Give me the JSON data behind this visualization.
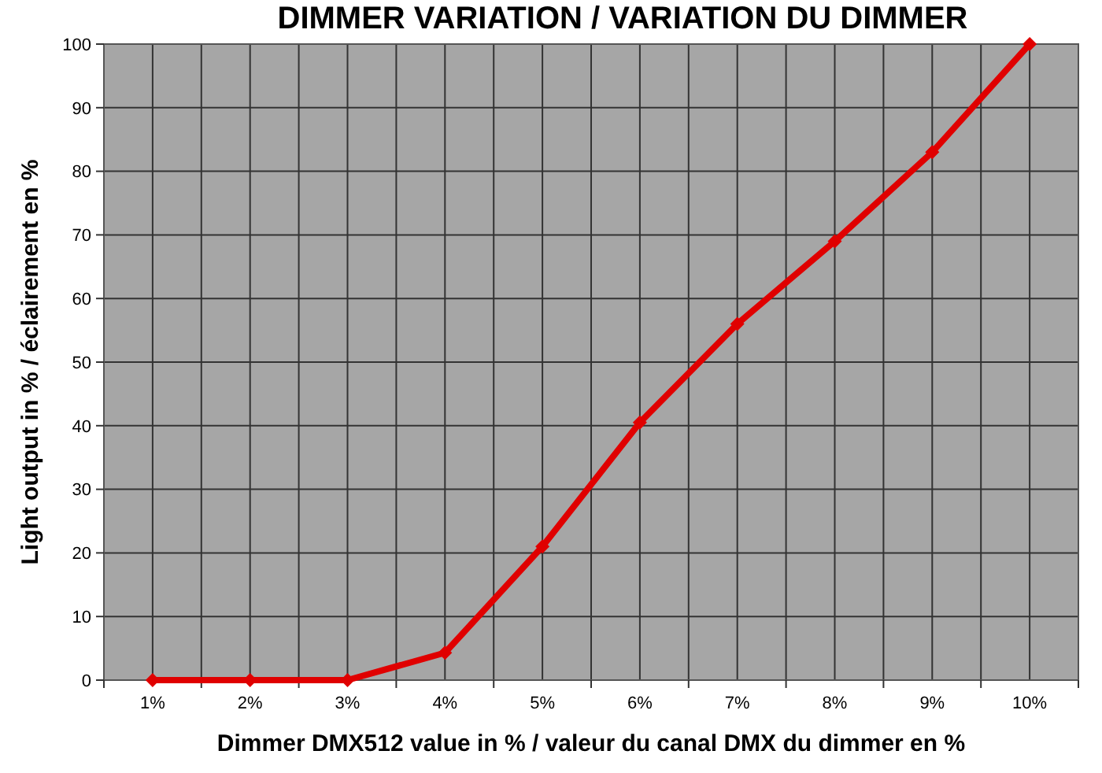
{
  "chart_data": {
    "type": "line",
    "title": "DIMMER VARIATION / VARIATION DU DIMMER",
    "xlabel": "Dimmer DMX512 value in % / valeur du canal DMX du dimmer en %",
    "ylabel": "Light output in % / éclairement en %",
    "categories": [
      "1%",
      "2%",
      "3%",
      "4%",
      "5%",
      "6%",
      "7%",
      "8%",
      "9%",
      "10%"
    ],
    "series": [
      {
        "color": "#e00000",
        "values": [
          0,
          0,
          0,
          4.3,
          21,
          40.5,
          56,
          69,
          83,
          100
        ]
      }
    ],
    "ylim": [
      0,
      100
    ],
    "yticks": [
      0,
      10,
      20,
      30,
      40,
      50,
      60,
      70,
      80,
      90,
      100
    ],
    "grid": true,
    "marker": "diamond",
    "line_style": "solid"
  }
}
